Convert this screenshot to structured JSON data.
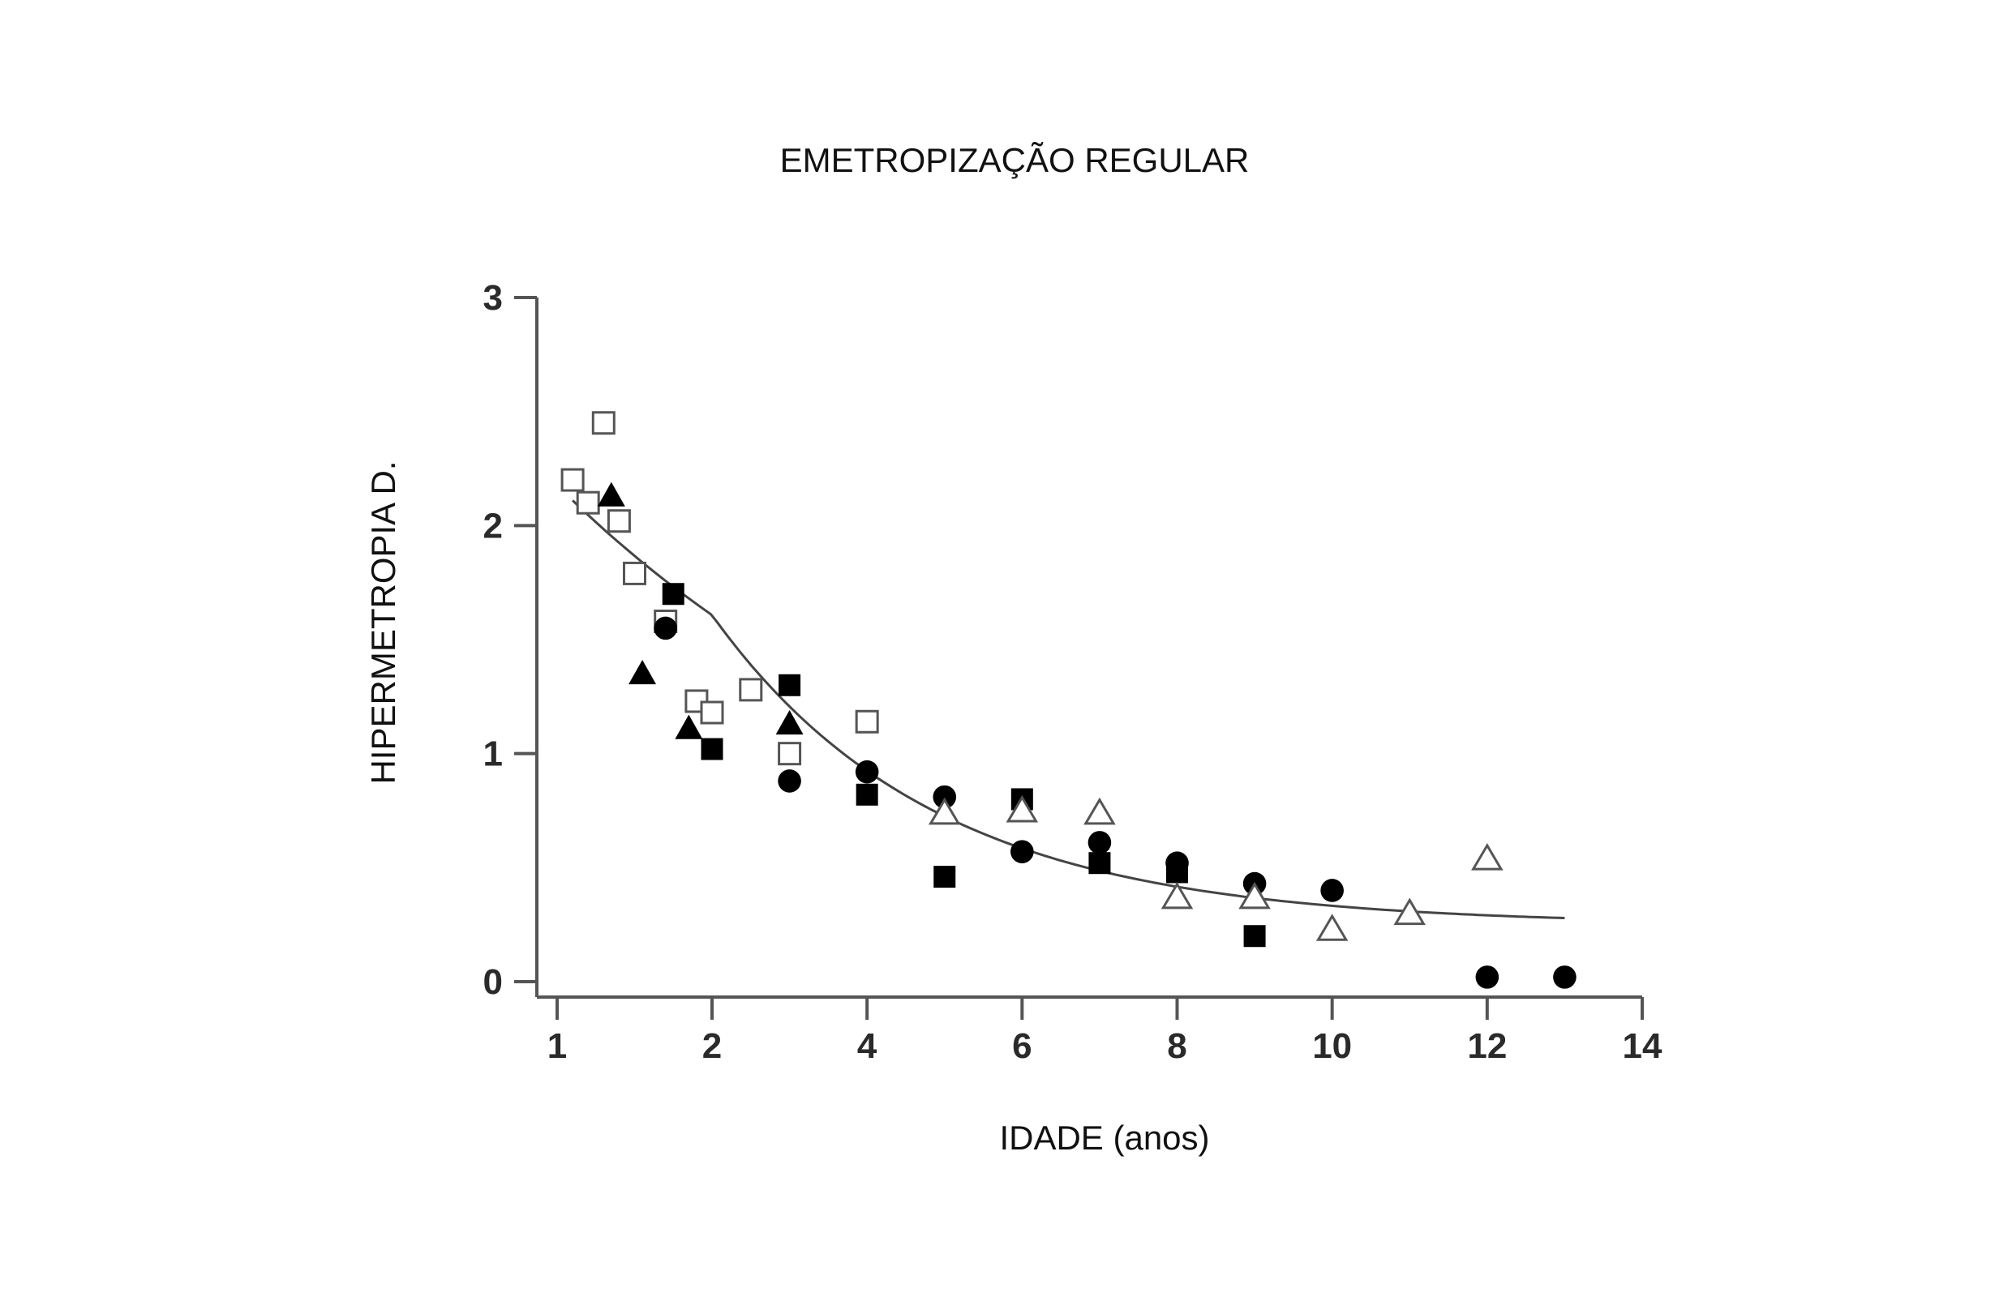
{
  "chart_data": {
    "type": "scatter",
    "title": "EMETROPIZAÇÃO REGULAR",
    "xlabel": "IDADE (anos)",
    "ylabel": "HIPERMETROPIA D.",
    "xlim": [
      1,
      14
    ],
    "ylim": [
      0,
      3
    ],
    "grid": false,
    "legend": "none",
    "x_ticks": [
      {
        "value": 1,
        "label": "1"
      },
      {
        "value": 2,
        "label": "2"
      },
      {
        "value": 4,
        "label": "4"
      },
      {
        "value": 6,
        "label": "6"
      },
      {
        "value": 8,
        "label": "8"
      },
      {
        "value": 10,
        "label": "10"
      },
      {
        "value": 12,
        "label": "12"
      },
      {
        "value": 14,
        "label": "14"
      }
    ],
    "y_ticks": [
      {
        "value": 0,
        "label": "0"
      },
      {
        "value": 1,
        "label": "1"
      },
      {
        "value": 2,
        "label": "2"
      },
      {
        "value": 3,
        "label": "3"
      }
    ],
    "series": [
      {
        "name": "open-square",
        "marker": "square-open",
        "points": [
          [
            1.1,
            2.2
          ],
          [
            1.2,
            2.1
          ],
          [
            1.3,
            2.45
          ],
          [
            1.4,
            2.02
          ],
          [
            1.5,
            1.79
          ],
          [
            1.7,
            1.58
          ],
          [
            1.9,
            1.23
          ],
          [
            2.0,
            1.18
          ],
          [
            2.5,
            1.28
          ],
          [
            3.0,
            1.0
          ],
          [
            4.0,
            1.14
          ]
        ]
      },
      {
        "name": "filled-square",
        "marker": "square-filled",
        "points": [
          [
            1.75,
            1.7
          ],
          [
            2.0,
            1.02
          ],
          [
            3.0,
            1.3
          ],
          [
            4.0,
            0.82
          ],
          [
            5.0,
            0.46
          ],
          [
            6.0,
            0.8
          ],
          [
            7.0,
            0.52
          ],
          [
            8.0,
            0.48
          ],
          [
            9.0,
            0.2
          ]
        ]
      },
      {
        "name": "filled-triangle",
        "marker": "triangle-filled",
        "points": [
          [
            1.35,
            2.13
          ],
          [
            1.55,
            1.35
          ],
          [
            1.85,
            1.11
          ],
          [
            3.0,
            1.13
          ]
        ]
      },
      {
        "name": "filled-circle",
        "marker": "circle-filled",
        "points": [
          [
            1.7,
            1.55
          ],
          [
            3.0,
            0.88
          ],
          [
            4.0,
            0.92
          ],
          [
            5.0,
            0.81
          ],
          [
            6.0,
            0.57
          ],
          [
            7.0,
            0.61
          ],
          [
            8.0,
            0.52
          ],
          [
            9.0,
            0.43
          ],
          [
            10.0,
            0.4
          ],
          [
            12.0,
            0.02
          ],
          [
            13.0,
            0.02
          ]
        ]
      },
      {
        "name": "open-triangle",
        "marker": "triangle-open",
        "points": [
          [
            5.0,
            0.74
          ],
          [
            6.0,
            0.75
          ],
          [
            7.0,
            0.74
          ],
          [
            8.0,
            0.37
          ],
          [
            9.0,
            0.37
          ],
          [
            10.0,
            0.23
          ],
          [
            11.0,
            0.3
          ],
          [
            12.0,
            0.54
          ]
        ]
      }
    ],
    "fit_curve": {
      "type": "exponential",
      "x_range": [
        1.1,
        13.0
      ],
      "asymptote": 0.25,
      "amplitude": 1.86,
      "rate": 0.35
    }
  }
}
